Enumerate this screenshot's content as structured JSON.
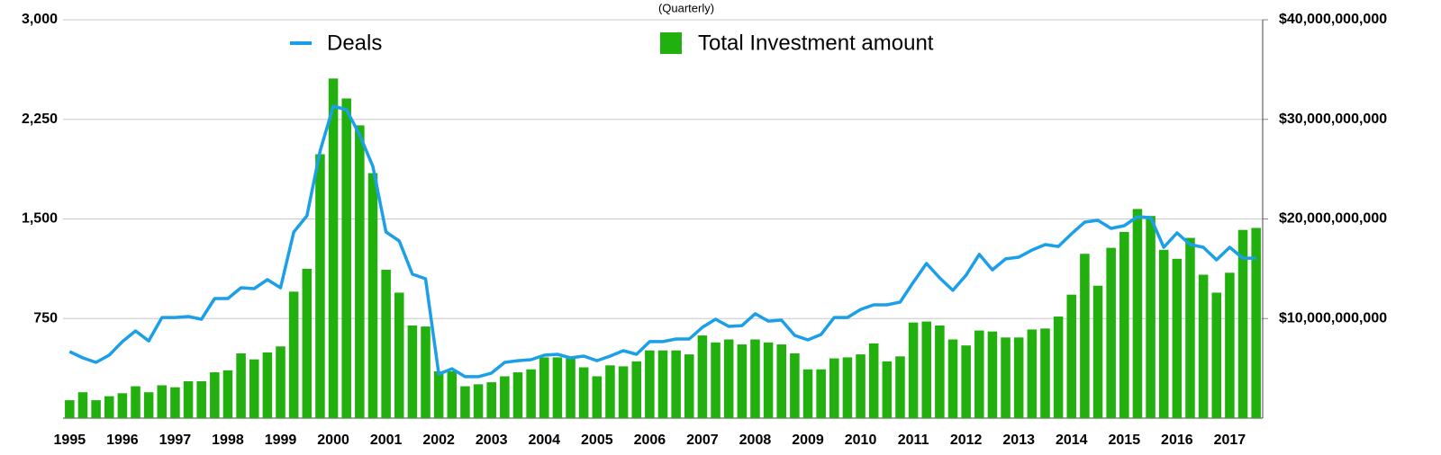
{
  "chart_data": {
    "type": "bar",
    "title": "(Quarterly)",
    "categories": [
      "1995",
      null,
      null,
      null,
      "1996",
      null,
      null,
      null,
      "1997",
      null,
      null,
      null,
      "1998",
      null,
      null,
      null,
      "1999",
      null,
      null,
      null,
      "2000",
      null,
      null,
      null,
      "2001",
      null,
      null,
      null,
      "2002",
      null,
      null,
      null,
      "2003",
      null,
      null,
      null,
      "2004",
      null,
      null,
      null,
      "2005",
      null,
      null,
      null,
      "2006",
      null,
      null,
      null,
      "2007",
      null,
      null,
      null,
      "2008",
      null,
      null,
      null,
      "2009",
      null,
      null,
      null,
      "2010",
      null,
      null,
      null,
      "2011",
      null,
      null,
      null,
      "2012",
      null,
      null,
      null,
      "2013",
      null,
      null,
      null,
      "2014",
      null,
      null,
      null,
      "2015",
      null,
      null,
      null,
      "2016",
      null,
      null,
      null,
      "2017",
      null,
      null
    ],
    "series": [
      {
        "name": "Deals",
        "type": "line",
        "color": "#1b9fe8",
        "axis": "y",
        "values": [
          501,
          454,
          420,
          474,
          576,
          657,
          582,
          758,
          758,
          765,
          745,
          901,
          901,
          982,
          975,
          1043,
          982,
          1402,
          1524,
          2011,
          2350,
          2323,
          2133,
          1896,
          1402,
          1334,
          1084,
          1050,
          332,
          372,
          312,
          312,
          339,
          420,
          433,
          440,
          474,
          481,
          454,
          467,
          433,
          467,
          508,
          481,
          576,
          576,
          596,
          596,
          684,
          745,
          691,
          697,
          786,
          731,
          738,
          623,
          589,
          630,
          758,
          758,
          819,
          853,
          853,
          874,
          1023,
          1165,
          1056,
          962,
          1077,
          1233,
          1117,
          1199,
          1212,
          1266,
          1307,
          1293,
          1388,
          1476,
          1490,
          1429,
          1449,
          1517,
          1510,
          1287,
          1395,
          1307,
          1287,
          1192,
          1287,
          1205,
          1205
        ]
      },
      {
        "name": "Total Investment amount",
        "type": "bar",
        "color": "#22b00f",
        "axis": "y2",
        "values": [
          1800000000.0,
          2600000000.0,
          1800000000.0,
          2200000000.0,
          2500000000.0,
          3200000000.0,
          2600000000.0,
          3300000000.0,
          3100000000.0,
          3700000000.0,
          3700000000.0,
          4600000000.0,
          4800000000.0,
          6500000000.0,
          5900000000.0,
          6600000000.0,
          7200000000.0,
          12700000000.0,
          15000000000.0,
          26500000000.0,
          34100000000.0,
          32100000000.0,
          29400000000.0,
          24600000000.0,
          14900000000.0,
          12600000000.0,
          9300000000.0,
          9200000000.0,
          4700000000.0,
          4700000000.0,
          3200000000.0,
          3400000000.0,
          3600000000.0,
          4200000000.0,
          4600000000.0,
          4900000000.0,
          6100000000.0,
          6100000000.0,
          6000000000.0,
          5100000000.0,
          4200000000.0,
          5300000000.0,
          5200000000.0,
          5700000000.0,
          6800000000.0,
          6800000000.0,
          6800000000.0,
          6400000000.0,
          8300000000.0,
          7600000000.0,
          7900000000.0,
          7400000000.0,
          7900000000.0,
          7600000000.0,
          7400000000.0,
          6500000000.0,
          4900000000.0,
          4900000000.0,
          6000000000.0,
          6100000000.0,
          6400000000.0,
          7500000000.0,
          5700000000.0,
          6200000000.0,
          9600000000.0,
          9700000000.0,
          9300000000.0,
          7900000000.0,
          7300000000.0,
          8800000000.0,
          8700000000.0,
          8100000000.0,
          8100000000.0,
          8900000000.0,
          9000000000.0,
          10200000000.0,
          12400000000.0,
          16500000000.0,
          13300000000.0,
          17100000000.0,
          18700000000.0,
          21000000000.0,
          20300000000.0,
          16900000000.0,
          16000000000.0,
          18100000000.0,
          14400000000.0,
          12600000000.0,
          14600000000.0,
          18900000000.0,
          19100000000.0
        ]
      }
    ],
    "ylim": [
      0,
      3000
    ],
    "yticks": [
      {
        "value": 750,
        "label": "750"
      },
      {
        "value": 1500,
        "label": "1,500"
      },
      {
        "value": 2250,
        "label": "2,250"
      },
      {
        "value": 3000,
        "label": "3,000"
      }
    ],
    "y2lim": [
      0,
      40000000000
    ],
    "y2ticks": [
      {
        "value": 10000000000,
        "label": "$10,000,000,000"
      },
      {
        "value": 20000000000,
        "label": "$20,000,000,000"
      },
      {
        "value": 30000000000,
        "label": "$30,000,000,000"
      },
      {
        "value": 40000000000,
        "label": "$40,000,000,000"
      }
    ],
    "grid": true
  }
}
